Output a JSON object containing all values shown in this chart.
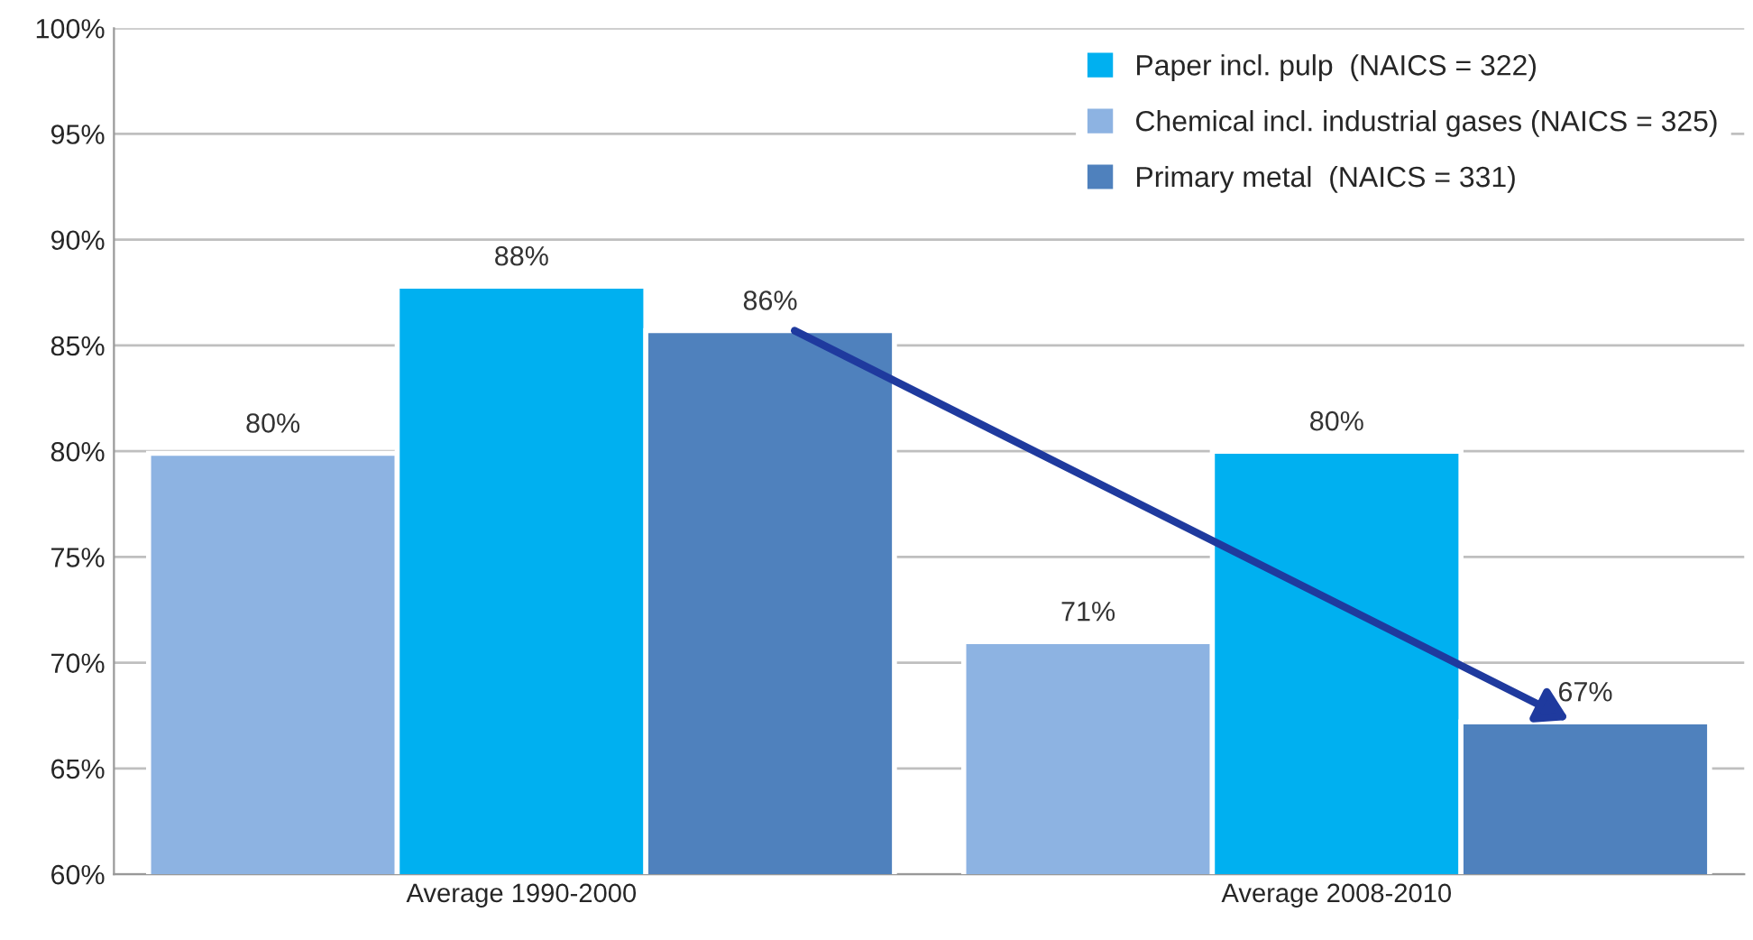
{
  "chart_data": {
    "type": "bar",
    "categories": [
      "Average 1990-2000",
      "Average 2008-2010"
    ],
    "series": [
      {
        "name": "Chemical incl. industrial gases (NAICS = 325)",
        "color": "#8db3e2",
        "values": [
          79.9,
          71.0
        ],
        "value_labels": [
          "80%",
          "71%"
        ]
      },
      {
        "name": "Paper incl. pulp  (NAICS = 322)",
        "color": "#00b0f0",
        "values": [
          87.8,
          80.0
        ],
        "value_labels": [
          "88%",
          "80%"
        ]
      },
      {
        "name": "Primary metal  (NAICS = 331)",
        "color": "#4f81bd",
        "values": [
          85.7,
          67.2
        ],
        "value_labels": [
          "86%",
          "67%"
        ]
      }
    ],
    "ylim": [
      60,
      100
    ],
    "yticks": [
      {
        "value": 60,
        "label": "60%"
      },
      {
        "value": 65,
        "label": "65%"
      },
      {
        "value": 70,
        "label": "70%"
      },
      {
        "value": 75,
        "label": "75%"
      },
      {
        "value": 80,
        "label": "80%"
      },
      {
        "value": 85,
        "label": "85%"
      },
      {
        "value": 90,
        "label": "90%"
      },
      {
        "value": 95,
        "label": "95%"
      },
      {
        "value": 100,
        "label": "100%"
      }
    ],
    "grid": "y",
    "legend": "top right"
  }
}
